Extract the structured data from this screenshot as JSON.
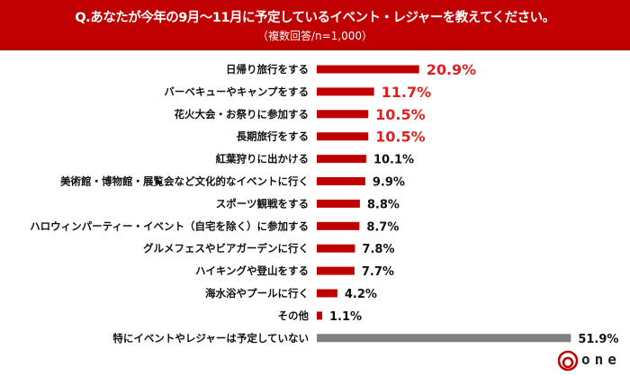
{
  "chart_data": {
    "type": "bar",
    "orientation": "horizontal",
    "title": "Q.あなたが今年の9月～11月に予定しているイベント・レジャーを教えてください。",
    "subtitle": "（複数回答/n=1,000）",
    "unit": "%",
    "categories": [
      "日帰り旅行をする",
      "バーベキューやキャンプをする",
      "花火大会・お祭りに参加する",
      "長期旅行をする",
      "紅葉狩りに出かける",
      "美術館・博物館・展覧会など文化的なイベントに行く",
      "スポーツ観戦をする",
      "ハロウィンパーティー・イベント（自宅を除く）に参加する",
      "グルメフェスやビアガーデンに行く",
      "ハイキングや登山をする",
      "海水浴やプールに行く",
      "その他",
      "特にイベントやレジャーは予定していない"
    ],
    "values": [
      20.9,
      11.7,
      10.5,
      10.5,
      10.1,
      9.9,
      8.8,
      8.7,
      7.8,
      7.7,
      4.2,
      1.1,
      51.9
    ],
    "labels": [
      "20.9%",
      "11.7%",
      "10.5%",
      "10.5%",
      "10.1%",
      "9.9%",
      "8.8%",
      "8.7%",
      "7.8%",
      "7.7%",
      "4.2%",
      "1.1%",
      "51.9%"
    ],
    "highlight_top": 4,
    "colors": {
      "bar": "#c00000",
      "none_bar": "#808080",
      "highlight_label": "#e02020",
      "label": "#111111"
    },
    "xlim": [
      0,
      55
    ],
    "grid": false
  },
  "logo": {
    "text": "one",
    "color": "#c00000"
  }
}
